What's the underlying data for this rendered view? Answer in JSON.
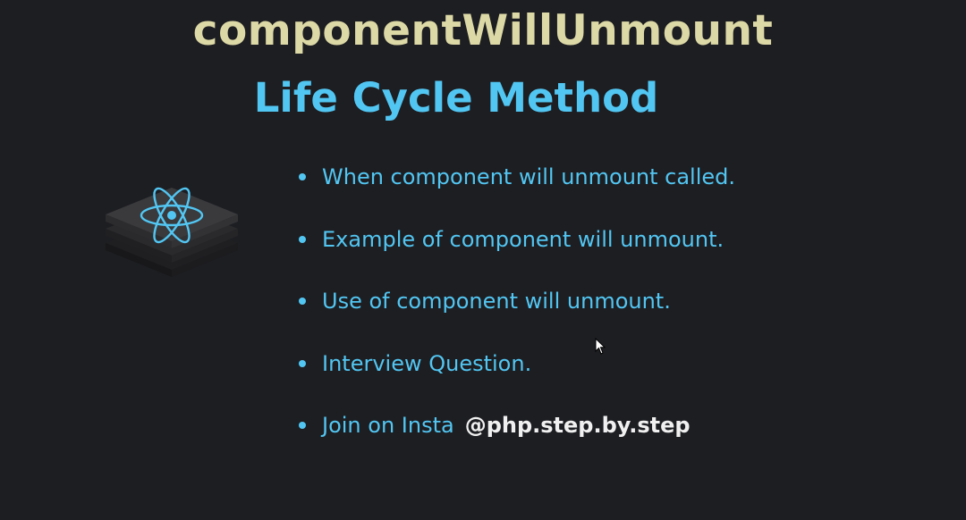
{
  "slide": {
    "title": "componentWillUnmount",
    "subtitle": "Life Cycle Method",
    "bullets": [
      "When component will unmount called.",
      "Example of component will unmount.",
      "Use of component will unmount.",
      "Interview Question.",
      "Join on Insta"
    ],
    "insta_handle": "@php.step.by.step"
  },
  "colors": {
    "background": "#1d1e22",
    "title": "#ddd9a6",
    "accent": "#52c6f2",
    "handle": "#f0f0f0"
  },
  "icons": {
    "logo": "react-stack-icon",
    "cursor": "mouse-cursor-icon"
  }
}
